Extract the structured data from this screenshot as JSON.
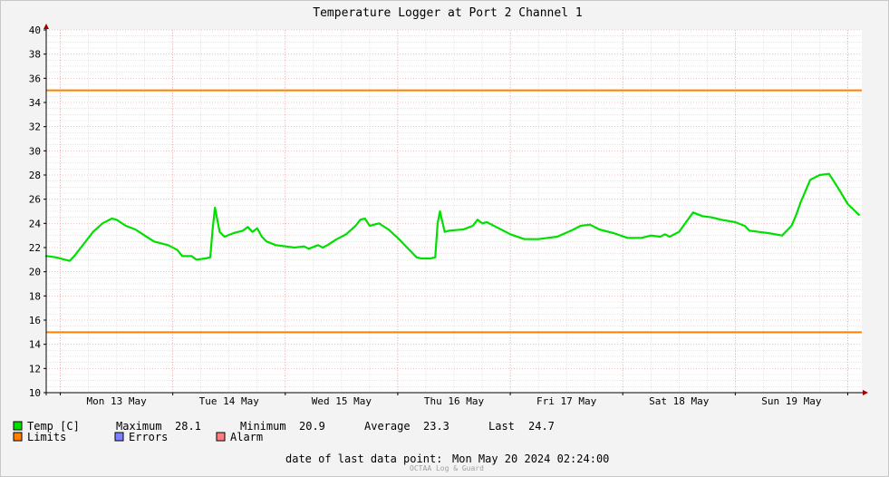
{
  "chart_data": {
    "type": "line",
    "title": "Temperature Logger at Port 2 Channel 1",
    "ylim": [
      10,
      40
    ],
    "y_ticks": [
      10,
      12,
      14,
      16,
      18,
      20,
      22,
      24,
      26,
      28,
      30,
      32,
      34,
      36,
      38,
      40
    ],
    "x_range": [
      "2024-05-12T21:00:00",
      "2024-05-20T03:00:00"
    ],
    "x_ticks": [
      {
        "at": "2024-05-13T00:00:00",
        "label": ""
      },
      {
        "at": "2024-05-13T12:00:00",
        "label": "Mon 13 May"
      },
      {
        "at": "2024-05-14T00:00:00",
        "label": ""
      },
      {
        "at": "2024-05-14T12:00:00",
        "label": "Tue 14 May"
      },
      {
        "at": "2024-05-15T00:00:00",
        "label": ""
      },
      {
        "at": "2024-05-15T12:00:00",
        "label": "Wed 15 May"
      },
      {
        "at": "2024-05-16T00:00:00",
        "label": ""
      },
      {
        "at": "2024-05-16T12:00:00",
        "label": "Thu 16 May"
      },
      {
        "at": "2024-05-17T00:00:00",
        "label": ""
      },
      {
        "at": "2024-05-17T12:00:00",
        "label": "Fri 17 May"
      },
      {
        "at": "2024-05-18T00:00:00",
        "label": ""
      },
      {
        "at": "2024-05-18T12:00:00",
        "label": "Sat 18 May"
      },
      {
        "at": "2024-05-19T00:00:00",
        "label": ""
      },
      {
        "at": "2024-05-19T12:00:00",
        "label": "Sun 19 May"
      },
      {
        "at": "2024-05-20T00:00:00",
        "label": ""
      }
    ],
    "series": [
      {
        "name": "Temp [C]",
        "color": "#00e000",
        "x": [
          "2024-05-12T21:00",
          "2024-05-12T23:00",
          "2024-05-13T02:00",
          "2024-05-13T03:00",
          "2024-05-13T05:00",
          "2024-05-13T07:00",
          "2024-05-13T09:00",
          "2024-05-13T11:00",
          "2024-05-13T12:00",
          "2024-05-13T14:00",
          "2024-05-13T16:00",
          "2024-05-13T18:00",
          "2024-05-13T20:00",
          "2024-05-13T23:00",
          "2024-05-14T01:00",
          "2024-05-14T02:00",
          "2024-05-14T04:00",
          "2024-05-14T05:00",
          "2024-05-14T07:00",
          "2024-05-14T08:00",
          "2024-05-14T08:30",
          "2024-05-14T09:00",
          "2024-05-14T10:00",
          "2024-05-14T11:00",
          "2024-05-14T13:00",
          "2024-05-14T15:00",
          "2024-05-14T16:00",
          "2024-05-14T17:00",
          "2024-05-14T18:00",
          "2024-05-14T19:00",
          "2024-05-14T20:00",
          "2024-05-14T22:00",
          "2024-05-15T02:00",
          "2024-05-15T04:00",
          "2024-05-15T05:00",
          "2024-05-15T07:00",
          "2024-05-15T08:00",
          "2024-05-15T09:00",
          "2024-05-15T11:00",
          "2024-05-15T13:00",
          "2024-05-15T15:00",
          "2024-05-15T16:00",
          "2024-05-15T17:00",
          "2024-05-15T18:00",
          "2024-05-15T20:00",
          "2024-05-15T22:00",
          "2024-05-16T00:00",
          "2024-05-16T02:00",
          "2024-05-16T04:00",
          "2024-05-16T05:00",
          "2024-05-16T07:00",
          "2024-05-16T08:00",
          "2024-05-16T08:30",
          "2024-05-16T09:00",
          "2024-05-16T10:00",
          "2024-05-16T11:00",
          "2024-05-16T14:00",
          "2024-05-16T16:00",
          "2024-05-16T17:00",
          "2024-05-16T18:00",
          "2024-05-16T19:00",
          "2024-05-16T21:00",
          "2024-05-17T00:00",
          "2024-05-17T03:00",
          "2024-05-17T06:00",
          "2024-05-17T08:00",
          "2024-05-17T10:00",
          "2024-05-17T13:00",
          "2024-05-17T15:00",
          "2024-05-17T17:00",
          "2024-05-17T19:00",
          "2024-05-17T22:00",
          "2024-05-18T01:00",
          "2024-05-18T04:00",
          "2024-05-18T06:00",
          "2024-05-18T08:00",
          "2024-05-18T09:00",
          "2024-05-18T10:00",
          "2024-05-18T12:00",
          "2024-05-18T15:00",
          "2024-05-18T17:00",
          "2024-05-18T19:00",
          "2024-05-18T21:00",
          "2024-05-19T00:00",
          "2024-05-19T02:00",
          "2024-05-19T03:00",
          "2024-05-19T05:00",
          "2024-05-19T07:00",
          "2024-05-19T10:00",
          "2024-05-19T12:00",
          "2024-05-19T13:00",
          "2024-05-19T14:00",
          "2024-05-19T16:00",
          "2024-05-19T18:00",
          "2024-05-19T20:00",
          "2024-05-19T22:00",
          "2024-05-20T00:00",
          "2024-05-20T02:24"
        ],
        "y": [
          21.3,
          21.2,
          20.9,
          21.3,
          22.3,
          23.3,
          24.0,
          24.4,
          24.3,
          23.8,
          23.5,
          23.0,
          22.5,
          22.2,
          21.8,
          21.3,
          21.3,
          21.0,
          21.1,
          21.2,
          23.5,
          25.3,
          23.3,
          22.9,
          23.2,
          23.4,
          23.7,
          23.3,
          23.6,
          22.9,
          22.5,
          22.2,
          22.0,
          22.1,
          21.9,
          22.2,
          22.0,
          22.2,
          22.7,
          23.1,
          23.8,
          24.3,
          24.4,
          23.8,
          24.0,
          23.5,
          22.8,
          22.0,
          21.2,
          21.1,
          21.1,
          21.2,
          24.0,
          25.0,
          23.3,
          23.4,
          23.5,
          23.8,
          24.3,
          24.0,
          24.1,
          23.7,
          23.1,
          22.7,
          22.7,
          22.8,
          22.9,
          23.4,
          23.8,
          23.9,
          23.5,
          23.2,
          22.8,
          22.8,
          23.0,
          22.9,
          23.1,
          22.9,
          23.3,
          24.9,
          24.6,
          24.5,
          24.3,
          24.1,
          23.8,
          23.4,
          23.3,
          23.2,
          23.0,
          23.8,
          24.7,
          25.8,
          27.6,
          28.0,
          28.1,
          26.9,
          25.6,
          24.7
        ]
      }
    ],
    "limits": {
      "name": "Limits",
      "color": "#ff7f00",
      "values": [
        15,
        35
      ]
    }
  },
  "legend": {
    "temp_label": "Temp [C]",
    "temp_color": "#00e000",
    "maximum_label": "Maximum",
    "maximum_value": "28.1",
    "minimum_label": "Minimum",
    "minimum_value": "20.9",
    "average_label": "Average",
    "average_value": "23.3",
    "last_label": "Last",
    "last_value": "24.7",
    "limits_label": "Limits",
    "limits_color": "#ff7f00",
    "errors_label": "Errors",
    "errors_color": "#7f7fff",
    "alarm_label": "Alarm",
    "alarm_color": "#ff7f7f"
  },
  "footer": {
    "last_point_label": "date of last data point:",
    "last_point_value": "Mon May 20 2024 02:24:00",
    "watermark": "OCTAA Log & Guard"
  }
}
